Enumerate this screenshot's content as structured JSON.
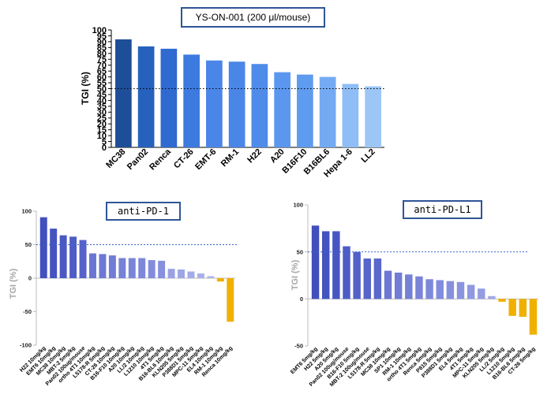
{
  "chart_data": [
    {
      "type": "bar",
      "title": "YS-ON-001 (200 μl/mouse)",
      "ylabel": "TGI (%)",
      "ylim": [
        0,
        100
      ],
      "yticks": [
        0,
        5,
        10,
        15,
        20,
        25,
        30,
        35,
        40,
        45,
        50,
        55,
        60,
        65,
        70,
        75,
        80,
        85,
        90,
        95,
        100
      ],
      "reference_line": 50,
      "categories": [
        "MC38",
        "Pan02",
        "Renca",
        "CT-26",
        "EMT-6",
        "RM-1",
        "H22",
        "A20",
        "B16F10",
        "B16BL6",
        "Hepa 1-6",
        "LL2"
      ],
      "values": [
        92,
        86,
        84,
        79,
        74,
        73,
        71,
        64,
        62,
        60,
        54,
        52
      ],
      "colors": [
        "#1f4e99",
        "#2661bd",
        "#2e6ad0",
        "#3d7ae0",
        "#4a86e8",
        "#4a86e8",
        "#4f8be9",
        "#5b97ee",
        "#5f9bee",
        "#74aaf2",
        "#8fbdf5",
        "#9cc6f6"
      ]
    },
    {
      "type": "bar",
      "title": "anti-PD-1",
      "ylabel": "TGI (%)",
      "ylim": [
        -100,
        100
      ],
      "yticks": [
        100,
        50,
        0,
        -50,
        -100
      ],
      "reference_line": 50,
      "categories": [
        "H22 10mg/kg",
        "EMT6 10mg/kg",
        "MC38 10mg/kg",
        "MBT-2 5mg/kg",
        "Pan02 100ug/mouse",
        "ortho 4T1 10mg/kg",
        "L5178-R 5mg/kg",
        "CT-26 10mg/kg",
        "B16-F10 10mg/kg",
        "A20 10mg/kg",
        "LL/2 10mg/kg",
        "L1210 10mg/kg",
        "4T1 5mg/kg",
        "B16-BL6 10mg/kg",
        "KLN205 5mg/kg",
        "P388D1 5mg/kg",
        "MPC-11 5mg/kg",
        "EL4 10mg/kg",
        "RM-1 10mg/kg",
        "Renca 10mg/kg"
      ],
      "values": [
        91,
        74,
        64,
        62,
        57,
        37,
        36,
        34,
        30,
        30,
        30,
        27,
        26,
        14,
        13,
        10,
        7,
        3,
        -5,
        -65
      ],
      "colors": [
        "#4150bd",
        "#4453c0",
        "#4a58c4",
        "#4e5cc6",
        "#5462c9",
        "#6a75d2",
        "#6d78d3",
        "#717cd5",
        "#7681d7",
        "#7a85d9",
        "#7e88da",
        "#828cdc",
        "#8690dd",
        "#9aa2e4",
        "#9ea6e5",
        "#a4abe7",
        "#a9b0e9",
        "#aeb4eb",
        "#f0b000",
        "#f0b000"
      ]
    },
    {
      "type": "bar",
      "title": "anti-PD-L1",
      "ylabel": "TGI (%)",
      "ylim": [
        -50,
        100
      ],
      "yticks": [
        100,
        50,
        0,
        -50
      ],
      "reference_line": 50,
      "categories": [
        "EMT6 5mg/kg",
        "H22 5mg/kg",
        "A20 5mg/kg",
        "Pan02 100ug/mouse",
        "B16-F10 5mg/kg",
        "MBT-2 100ug/mouse",
        "L5178-R 5mg/kg",
        "MC38 10mg/kg",
        "SP1 10mg/kg",
        "RM-1 10mg/kg",
        "ortho 4T1 5mg/kg",
        "Renca 5mg/kg",
        "P815 5mg/kg",
        "P388D1 5mg/kg",
        "EL4 5mg/kg",
        "4T1 5mg/kg",
        "MPC-11 5mg/kg",
        "KLN205 5mg/kg",
        "LL/2 5mg/kg",
        "L1210 5mg/kg",
        "B16-BL6 5mg/kg",
        "CT-26 5mg/kg"
      ],
      "values": [
        78,
        72,
        72,
        56,
        50,
        43,
        43,
        30,
        28,
        26,
        24,
        21,
        20,
        19,
        18,
        15,
        11,
        3,
        -3,
        -18,
        -19,
        -38
      ],
      "colors": [
        "#4150bd",
        "#4453c0",
        "#4756c2",
        "#4e5cc6",
        "#5260c8",
        "#5765ca",
        "#5a68cc",
        "#6d78d3",
        "#717cd5",
        "#7580d6",
        "#7a85d9",
        "#7e88da",
        "#828cdc",
        "#8690dd",
        "#8a94df",
        "#8f98e1",
        "#949de2",
        "#a0a8e6",
        "#f0b000",
        "#f0b000",
        "#f0b000",
        "#f0b000"
      ]
    }
  ]
}
